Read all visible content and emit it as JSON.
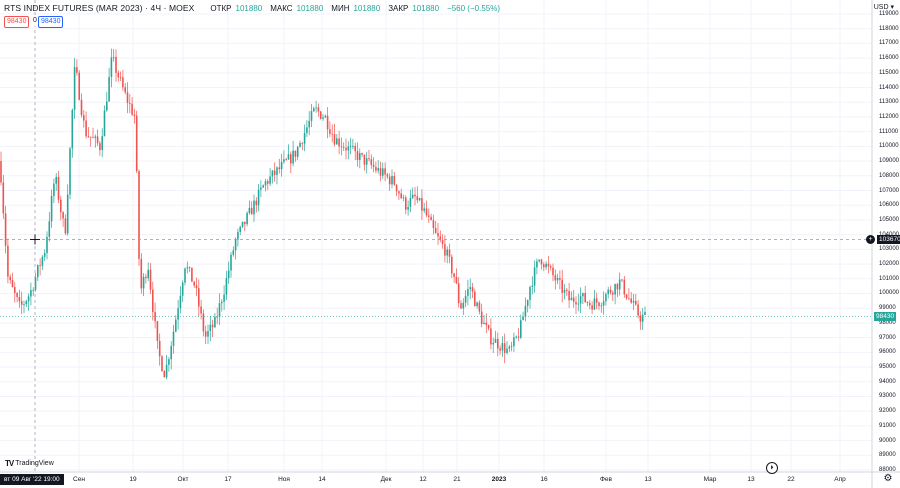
{
  "legend": {
    "title": "RTS INDEX FUTURES (MAR 2023) · 4Ч · MOEX",
    "open_label": "ОТКР",
    "open_value": "101880",
    "high_label": "МАКС",
    "high_value": "101880",
    "low_label": "МИН",
    "low_value": "101880",
    "close_label": "ЗАКР",
    "close_value": "101880",
    "change": "−560 (−0.55%)"
  },
  "order": {
    "sell_price": "98430",
    "spread": "0",
    "buy_price": "98430"
  },
  "currency": "USD ▾",
  "axis": {
    "y_ticks": [
      "119000",
      "118000",
      "117000",
      "116000",
      "115000",
      "114000",
      "113000",
      "112000",
      "111000",
      "110000",
      "109000",
      "108000",
      "107000",
      "106000",
      "105000",
      "104000",
      "103000",
      "102000",
      "101000",
      "100000",
      "99000",
      "98000",
      "97000",
      "96000",
      "95000",
      "94000",
      "93000",
      "92000",
      "91000",
      "90000",
      "89000",
      "88000"
    ],
    "x_ticks": [
      "Сен",
      "19",
      "Окт",
      "17",
      "Ноя",
      "14",
      "Дек",
      "12",
      "21",
      "2023",
      "16",
      "Фев",
      "13",
      "Мар",
      "13",
      "22",
      "Апр"
    ]
  },
  "crosshair": {
    "time": "вт 09 Авг '22   19:00",
    "price": "103670",
    "add_icon": "plus-circle-icon"
  },
  "last_price": "98430",
  "branding": "TradingView",
  "colors": {
    "up": "#26a69a",
    "down": "#ef5350",
    "grid": "#f0f3fa",
    "text": "#131722"
  },
  "chart_data": {
    "type": "candlestick",
    "title": "RTS INDEX FUTURES (MAR 2023) · 4Ч · MOEX",
    "ylim": [
      88000,
      119000
    ],
    "x": [
      "Авг'22",
      "Сен",
      "19",
      "Окт",
      "17",
      "Ноя",
      "14",
      "Дек",
      "12",
      "21",
      "2023",
      "16",
      "Фев",
      "13"
    ],
    "close": [
      103500,
      112000,
      115500,
      96000,
      99000,
      103500,
      112500,
      109500,
      105000,
      99000,
      96000,
      101500,
      99000,
      98430
    ]
  }
}
